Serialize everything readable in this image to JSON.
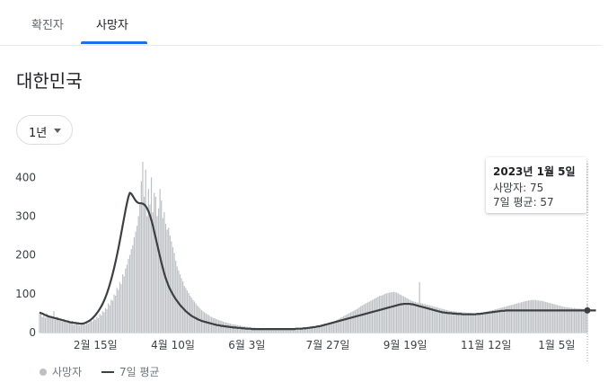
{
  "tabs": [
    {
      "label": "확진자",
      "active": false
    },
    {
      "label": "사망자",
      "active": true
    }
  ],
  "region_title": "대한민국",
  "period_select": {
    "value": "1년"
  },
  "tooltip": {
    "date": "2023년 1월 5일",
    "deaths_label": "사망자: 75",
    "avg_label": "7일 평균: 57"
  },
  "legend": {
    "bars": "사망자",
    "line": "7일 평균"
  },
  "colors": {
    "bar": "#bdc1c6",
    "line": "#3c4043",
    "accent": "#1a73e8"
  },
  "chart_data": {
    "type": "bar",
    "title": "",
    "xlabel": "",
    "ylabel": "",
    "ylim": [
      0,
      440
    ],
    "yticks": [
      0,
      100,
      200,
      300,
      400
    ],
    "x_tick_labels": [
      "2월 15일",
      "4월 10일",
      "6월 3일",
      "7월 27일",
      "9월 19일",
      "11월 12일",
      "1월 5일"
    ],
    "x_tick_index": [
      40,
      94,
      148,
      202,
      256,
      310,
      364
    ],
    "series": [
      {
        "name": "사망자",
        "values": [
          48,
          52,
          40,
          45,
          38,
          50,
          44,
          42,
          39,
          36,
          55,
          33,
          41,
          40,
          30,
          37,
          28,
          35,
          31,
          25,
          33,
          27,
          24,
          30,
          20,
          28,
          22,
          25,
          18,
          26,
          21,
          24,
          20,
          28,
          23,
          27,
          31,
          29,
          35,
          33,
          40,
          37,
          48,
          44,
          55,
          52,
          63,
          60,
          75,
          70,
          85,
          82,
          98,
          95,
          115,
          110,
          130,
          125,
          150,
          145,
          165,
          175,
          190,
          200,
          215,
          225,
          245,
          260,
          275,
          300,
          330,
          390,
          440,
          350,
          420,
          300,
          370,
          330,
          400,
          310,
          360,
          350,
          300,
          320,
          370,
          340,
          295,
          310,
          280,
          265,
          270,
          250,
          235,
          220,
          205,
          185,
          170,
          160,
          150,
          140,
          132,
          120,
          115,
          108,
          102,
          95,
          90,
          84,
          80,
          75,
          70,
          66,
          62,
          58,
          55,
          52,
          50,
          47,
          45,
          42,
          40,
          38,
          37,
          35,
          34,
          32,
          31,
          30,
          28,
          27,
          26,
          25,
          24,
          23,
          22,
          21,
          21,
          20,
          19,
          18,
          18,
          17,
          16,
          16,
          15,
          15,
          14,
          14,
          13,
          13,
          13,
          12,
          12,
          12,
          11,
          11,
          11,
          10,
          10,
          10,
          10,
          10,
          9,
          9,
          9,
          9,
          9,
          9,
          9,
          8,
          8,
          8,
          8,
          8,
          8,
          8,
          8,
          8,
          8,
          8,
          8,
          8,
          9,
          9,
          9,
          9,
          10,
          10,
          10,
          11,
          11,
          12,
          12,
          13,
          14,
          15,
          16,
          17,
          18,
          19,
          20,
          21,
          22,
          24,
          26,
          28,
          30,
          32,
          34,
          36,
          38,
          40,
          42,
          44,
          46,
          48,
          50,
          52,
          54,
          56,
          58,
          60,
          62,
          65,
          68,
          70,
          72,
          74,
          76,
          78,
          80,
          82,
          84,
          86,
          88,
          90,
          92,
          94,
          95,
          96,
          98,
          100,
          101,
          102,
          103,
          104,
          104,
          105,
          104,
          103,
          101,
          99,
          97,
          95,
          93,
          91,
          89,
          87,
          85,
          83,
          81,
          80,
          79,
          78,
          77,
          130,
          76,
          75,
          74,
          73,
          72,
          71,
          70,
          69,
          68,
          67,
          66,
          65,
          64,
          63,
          62,
          61,
          60,
          59,
          58,
          57,
          56,
          56,
          55,
          55,
          54,
          54,
          53,
          53,
          53,
          52,
          52,
          52,
          51,
          51,
          51,
          51,
          50,
          50,
          50,
          50,
          50,
          51,
          51,
          52,
          52,
          53,
          54,
          55,
          56,
          57,
          58,
          59,
          60,
          61,
          62,
          63,
          64,
          65,
          66,
          67,
          68,
          69,
          70,
          71,
          72,
          73,
          74,
          75,
          76,
          77,
          78,
          79,
          80,
          81,
          82,
          83,
          83,
          84,
          84,
          84,
          84,
          83,
          83,
          82,
          82,
          81,
          80,
          79,
          78,
          77,
          76,
          75,
          74,
          73,
          72,
          71,
          70,
          69,
          68,
          67,
          66,
          66,
          65,
          65,
          64,
          64,
          63,
          63,
          63,
          62,
          62,
          62,
          61,
          61,
          61,
          60,
          75
        ]
      },
      {
        "name": "7일 평균",
        "values": [
          52,
          50,
          49,
          47,
          45,
          44,
          42,
          41,
          40,
          39,
          38,
          37,
          36,
          35,
          34,
          33,
          32,
          31,
          30,
          29,
          28,
          27,
          26,
          26,
          25,
          25,
          24,
          24,
          23,
          23,
          23,
          24,
          25,
          27,
          29,
          31,
          34,
          37,
          41,
          45,
          50,
          55,
          61,
          67,
          74,
          82,
          91,
          101,
          112,
          124,
          137,
          151,
          166,
          182,
          199,
          217,
          236,
          256,
          276,
          296,
          316,
          334,
          350,
          360,
          358,
          352,
          346,
          340,
          336,
          334,
          333,
          333,
          332,
          330,
          326,
          320,
          312,
          302,
          290,
          276,
          260,
          244,
          228,
          212,
          196,
          180,
          166,
          152,
          140,
          130,
          120,
          112,
          105,
          98,
          92,
          86,
          81,
          76,
          71,
          67,
          63,
          59,
          55,
          52,
          49,
          46,
          43,
          41,
          39,
          37,
          35,
          33,
          32,
          30,
          29,
          28,
          27,
          26,
          25,
          24,
          23,
          22,
          21,
          20,
          19,
          19,
          18,
          17,
          17,
          16,
          16,
          15,
          15,
          14,
          14,
          13,
          13,
          13,
          12,
          12,
          12,
          11,
          11,
          11,
          10,
          10,
          10,
          10,
          9,
          9,
          9,
          9,
          9,
          9,
          9,
          9,
          9,
          9,
          9,
          9,
          9,
          9,
          9,
          9,
          9,
          9,
          9,
          9,
          9,
          9,
          9,
          9,
          9,
          9,
          9,
          9,
          9,
          9,
          9,
          10,
          10,
          10,
          10,
          10,
          11,
          11,
          11,
          12,
          12,
          13,
          13,
          14,
          14,
          15,
          16,
          16,
          17,
          18,
          19,
          20,
          21,
          22,
          23,
          24,
          25,
          26,
          27,
          28,
          29,
          30,
          31,
          32,
          33,
          34,
          35,
          36,
          37,
          38,
          39,
          40,
          41,
          42,
          43,
          44,
          45,
          46,
          47,
          48,
          49,
          50,
          51,
          52,
          53,
          54,
          55,
          56,
          57,
          58,
          59,
          60,
          61,
          62,
          63,
          64,
          65,
          66,
          67,
          68,
          69,
          70,
          71,
          72,
          73,
          73,
          74,
          74,
          74,
          74,
          74,
          73,
          73,
          72,
          71,
          70,
          69,
          68,
          67,
          66,
          65,
          64,
          63,
          62,
          61,
          60,
          59,
          58,
          57,
          56,
          55,
          54,
          53,
          52,
          52,
          51,
          51,
          50,
          50,
          50,
          49,
          49,
          49,
          48,
          48,
          48,
          48,
          47,
          47,
          47,
          47,
          47,
          47,
          47,
          47,
          47,
          47,
          48,
          48,
          48,
          49,
          49,
          50,
          50,
          51,
          51,
          52,
          52,
          53,
          53,
          54,
          54,
          55,
          55,
          56,
          56,
          56,
          57,
          57,
          57,
          57,
          57,
          57,
          57,
          57,
          57,
          57,
          57,
          57,
          57,
          57,
          57,
          57,
          57,
          57,
          57,
          57,
          57,
          57,
          57,
          57,
          57,
          57,
          57,
          57,
          57,
          57,
          57,
          57,
          57,
          57,
          57,
          57,
          57,
          57,
          57,
          57,
          57,
          57,
          57,
          57,
          57,
          57,
          57,
          57,
          57,
          57,
          57,
          57,
          57,
          57,
          57,
          57,
          57,
          57,
          57,
          57,
          57,
          57,
          57,
          57
        ]
      }
    ]
  }
}
